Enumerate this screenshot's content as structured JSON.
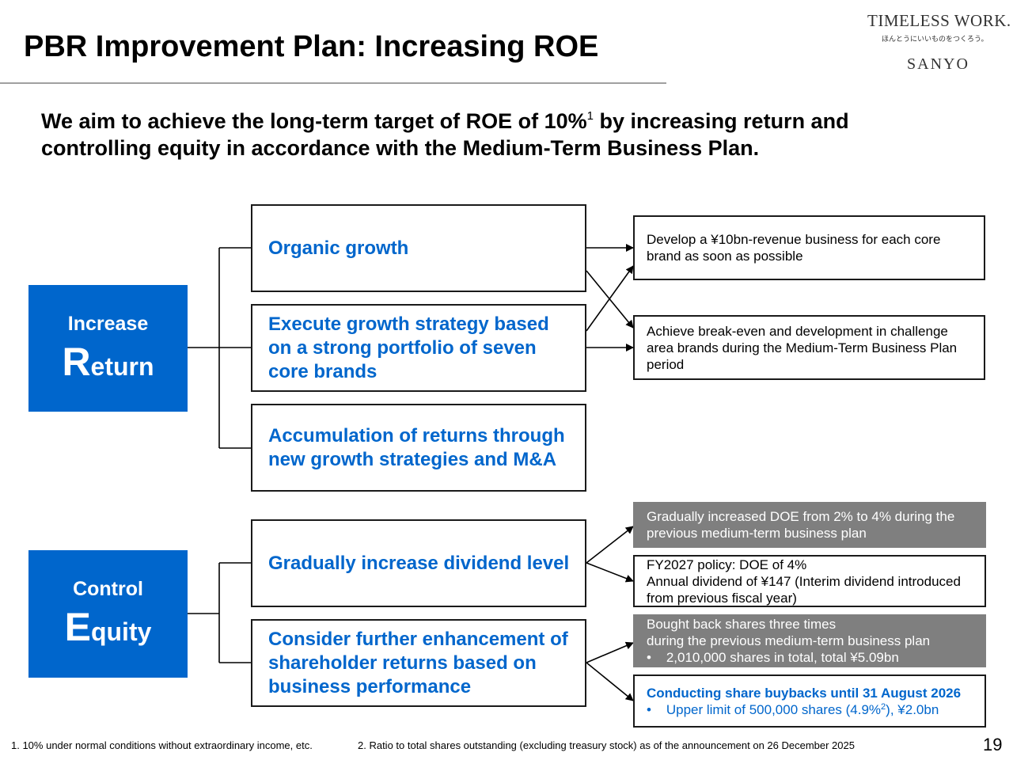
{
  "header": {
    "title": "PBR Improvement Plan: Increasing ROE",
    "logo_line1": "TIMELESS WORK.",
    "logo_line2": "ほんとうにいいものをつくろう。",
    "logo_line3": "SANYO"
  },
  "lead": {
    "part1": "We aim to achieve the long-term target of ROE of 10%",
    "sup": "1",
    "part2": " by increasing return and controlling equity in accordance with the Medium-Term Business Plan."
  },
  "return_group": {
    "label_small": "Increase",
    "label_cap": "R",
    "label_rest": "eturn",
    "strategies": [
      "Organic growth",
      "Execute growth strategy based on a strong portfolio of seven core brands",
      "Accumulation of returns through new growth strategies and M&A"
    ],
    "outcomes": [
      "Develop a ¥10bn-revenue business for each core brand as soon as possible",
      "Achieve break-even and development in challenge area brands during the Medium-Term Business Plan period"
    ]
  },
  "equity_group": {
    "label_small": "Control",
    "label_cap": "E",
    "label_rest": "quity",
    "strategies": [
      "Gradually increase dividend level",
      "Consider further enhancement of shareholder returns based on business performance"
    ],
    "dividend_past": "Gradually increased DOE from 2% to 4% during the previous medium-term business plan",
    "dividend_policy": {
      "line1": "FY2027 policy: DOE of 4%",
      "line2": "Annual dividend of ¥147 (Interim dividend introduced from previous fiscal year)"
    },
    "buyback_past": {
      "line1": "Bought back shares three times",
      "line2": "during the previous medium-term business plan",
      "bullet": "•    2,010,000 shares in total, total ¥5.09bn"
    },
    "buyback_current": {
      "line1": "Conducting share buybacks until 31 August 2026",
      "bullet_pre": "•    Upper limit of 500,000 shares (4.9%",
      "bullet_sup": "2",
      "bullet_post": "), ¥2.0bn"
    }
  },
  "footnotes": {
    "note1": "1. 10% under normal conditions without extraordinary income, etc.",
    "note2": "2. Ratio to total shares outstanding (excluding treasury stock) as of the announcement on 26 December 2025"
  },
  "page_number": "19",
  "colors": {
    "accent_blue": "#0066cc",
    "gray_box": "#7f7f7f",
    "rule": "#a0a0a0"
  }
}
